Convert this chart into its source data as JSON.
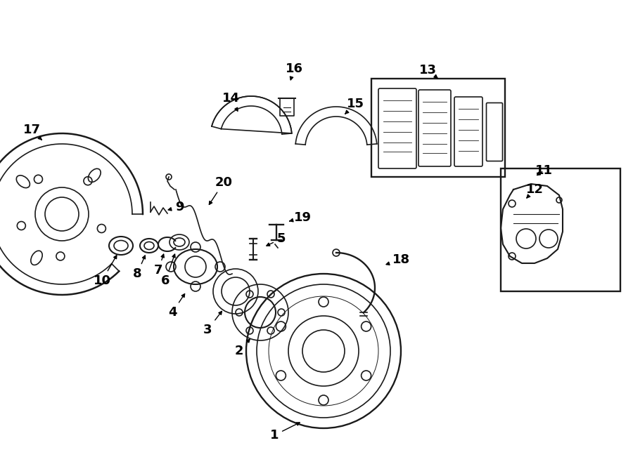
{
  "bg_color": "#ffffff",
  "line_color": "#1a1a1a",
  "lw": 1.2,
  "label_fontsize": 13,
  "figw": 9.0,
  "figh": 6.61,
  "dpi": 100
}
